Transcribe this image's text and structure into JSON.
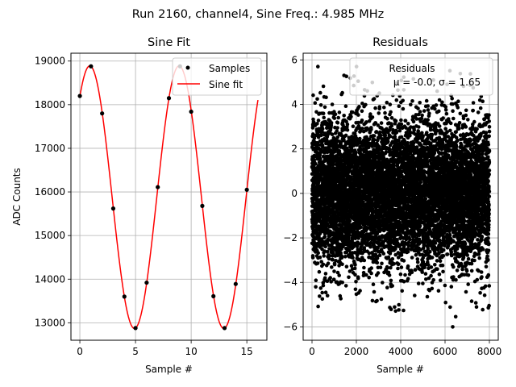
{
  "suptitle": "Run 2160, channel4, Sine Freq.: 4.985 MHz",
  "chart_data": [
    {
      "type": "line",
      "title": "Sine Fit",
      "xlabel": "Sample #",
      "ylabel": "ADC Counts",
      "xlim": [
        -0.8,
        16.8
      ],
      "ylim": [
        12600,
        19180
      ],
      "xticks": [
        0,
        5,
        10,
        15
      ],
      "xtick_labels": [
        "0",
        "5",
        "10",
        "15"
      ],
      "yticks": [
        13000,
        14000,
        15000,
        16000,
        17000,
        18000,
        19000
      ],
      "ytick_labels": [
        "13000",
        "14000",
        "15000",
        "16000",
        "17000",
        "18000",
        "19000"
      ],
      "grid": true,
      "legend_position": "top-right",
      "series": [
        {
          "name": "Samples",
          "kind": "scatter",
          "color": "#000000",
          "x": [
            0,
            1,
            2,
            3,
            4,
            5,
            6,
            7,
            8,
            9,
            10,
            11,
            12,
            13,
            14,
            15
          ],
          "y": [
            18200,
            18880,
            17800,
            15620,
            13600,
            12880,
            13920,
            16110,
            18150,
            18880,
            17840,
            15680,
            13610,
            12880,
            13890,
            16050
          ]
        },
        {
          "name": "Sine fit",
          "kind": "line",
          "color": "#ff0000",
          "model": {
            "amplitude": 3010,
            "offset": 15880,
            "period_samples": 8.025,
            "phase_deg": 49.96
          },
          "x_range": [
            0,
            16
          ]
        }
      ]
    },
    {
      "type": "scatter",
      "title": "Residuals",
      "xlabel": "Sample #",
      "ylabel": "",
      "xlim": [
        -400,
        8400
      ],
      "ylim": [
        -6.6,
        6.3
      ],
      "xticks": [
        0,
        2000,
        4000,
        6000,
        8000
      ],
      "xtick_labels": [
        "0",
        "2000",
        "4000",
        "6000",
        "8000"
      ],
      "yticks": [
        -6,
        -4,
        -2,
        0,
        2,
        4,
        6
      ],
      "ytick_labels": [
        "−6",
        "−4",
        "−2",
        "0",
        "2",
        "4",
        "6"
      ],
      "grid": true,
      "legend_position": "top-right",
      "series": [
        {
          "name": "Residuals",
          "color": "#000000",
          "n_points": 8000,
          "mean": -0.0,
          "sigma": 1.65,
          "x_range": [
            0,
            8000
          ],
          "y_extremes": [
            -6.0,
            5.7
          ]
        }
      ],
      "legend_title": "Residuals",
      "legend_stats": "μ = -0.0, σ = 1.65"
    }
  ]
}
